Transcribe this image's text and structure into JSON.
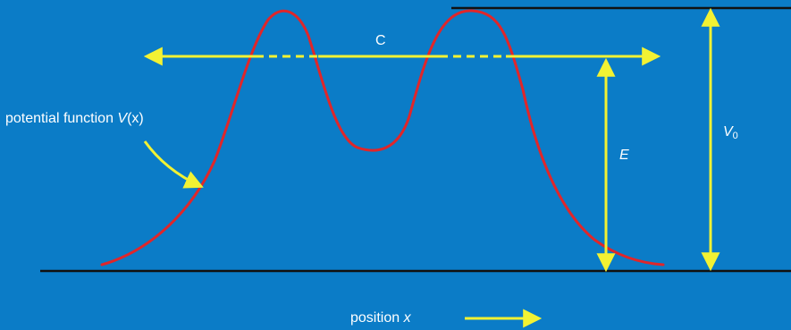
{
  "labels": {
    "potential_prefix": "potential function ",
    "potential_symbol": "V",
    "potential_args": "(x)",
    "c": "C",
    "e": "E",
    "v0_symbol": "V",
    "v0_subscript": "0",
    "position_prefix": "position ",
    "position_symbol": "x"
  },
  "colors": {
    "background": "#0b7cc7",
    "curve": "#e0262a",
    "arrow": "#f2f233",
    "baseline": "#111111",
    "text": "#ffffff"
  }
}
